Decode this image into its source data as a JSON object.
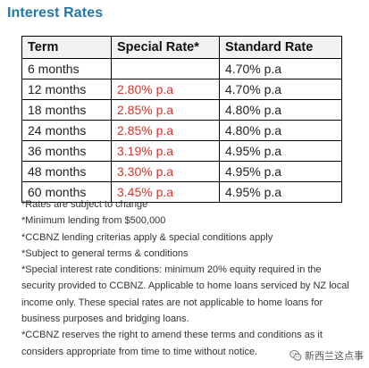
{
  "title": "Interest Rates",
  "table": {
    "headers": [
      "Term",
      "Special Rate*",
      "Standard Rate"
    ],
    "rows": [
      {
        "term": "6 months",
        "special": "",
        "standard": "4.70% p.a"
      },
      {
        "term": "12 months",
        "special": "2.80% p.a",
        "standard": "4.70% p.a"
      },
      {
        "term": "18 months",
        "special": "2.85% p.a",
        "standard": "4.80% p.a"
      },
      {
        "term": "24 months",
        "special": "2.85% p.a",
        "standard": "4.80% p.a"
      },
      {
        "term": "36 months",
        "special": "3.19% p.a",
        "standard": "4.95% p.a"
      },
      {
        "term": "48 months",
        "special": "3.30% p.a",
        "standard": "4.95% p.a"
      },
      {
        "term": "60 months",
        "special": "3.45% p.a",
        "standard": "4.95% p.a"
      }
    ]
  },
  "notes": [
    "*Rates are subject to change",
    "*Minimum lending from $500,000",
    "*CCBNZ lending criterias apply & special conditions apply",
    "*Subject to general terms & conditions",
    "*Special interest rate conditions: minimum 20% equity required in the security provided to CCBNZ. Applicable to home loans serviced by NZ local income only. These special rates are not applicable to home loans for business purposes and bridging loans.",
    "*CCBNZ reserves the right to amend these terms and conditions as it considers appropriate from time to time without notice."
  ],
  "watermark": {
    "text": "新西兰这点事",
    "icon": "wechat-icon"
  },
  "colors": {
    "title": "#2576a8",
    "special_rate": "#d8322b",
    "border": "#000000",
    "header_bg": "#f2f2f2"
  }
}
